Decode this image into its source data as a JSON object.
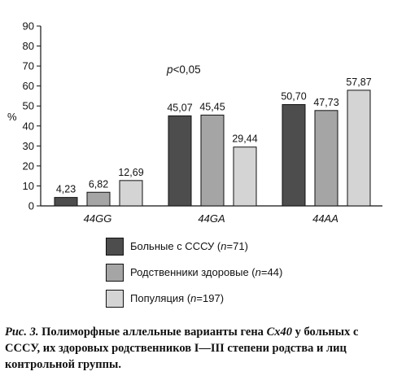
{
  "chart_data": {
    "type": "bar",
    "ylabel": "%",
    "ylim": [
      0,
      90
    ],
    "yticks": [
      0,
      10,
      20,
      30,
      40,
      50,
      60,
      70,
      80,
      90
    ],
    "categories": [
      "44GG",
      "44GA",
      "44AA"
    ],
    "annotation": "p<0,05",
    "series": [
      {
        "name": "Больные с СССУ",
        "n": "n=71",
        "color": "#4d4d4d",
        "values": [
          4.23,
          45.07,
          50.7
        ],
        "labels": [
          "4,23",
          "45,07",
          "50,70"
        ]
      },
      {
        "name": "Родственники здоровые",
        "n": "n=44",
        "color": "#a5a5a5",
        "values": [
          6.82,
          45.45,
          47.73
        ],
        "labels": [
          "6,82",
          "45,45",
          "47,73"
        ]
      },
      {
        "name": "Популяция",
        "n": "n=197",
        "color": "#d4d4d4",
        "values": [
          12.69,
          29.44,
          57.87
        ],
        "labels": [
          "12,69",
          "29,44",
          "57,87"
        ]
      }
    ]
  },
  "legend": [
    {
      "label": "Больные с СССУ",
      "n_prefix": "n",
      "n_value": "=71"
    },
    {
      "label": "Родственники здоровые",
      "n_prefix": "n",
      "n_value": "=44"
    },
    {
      "label": "Популяция",
      "n_prefix": "n",
      "n_value": "=197"
    }
  ],
  "caption": {
    "fig": "Рис. 3.",
    "part1": " Полиморфные аллельные варианты гена ",
    "gene": "Cx40",
    "part2": " у больных с СССУ, их здоровых родственников I—III степени родства и лиц контрольной группы."
  }
}
